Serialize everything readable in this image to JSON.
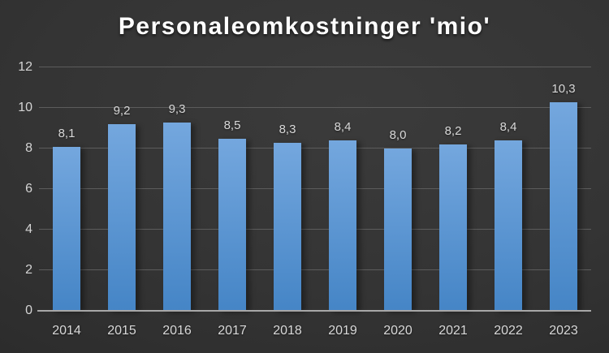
{
  "title": "Personaleomkostninger 'mio'",
  "chart_data": {
    "type": "bar",
    "title": "Personaleomkostninger 'mio'",
    "categories": [
      "2014",
      "2015",
      "2016",
      "2017",
      "2018",
      "2019",
      "2020",
      "2021",
      "2022",
      "2023"
    ],
    "values": [
      8.1,
      9.2,
      9.3,
      8.5,
      8.3,
      8.4,
      8.0,
      8.2,
      8.4,
      10.3
    ],
    "value_labels": [
      "8,1",
      "9,2",
      "9,3",
      "8,5",
      "8,3",
      "8,4",
      "8,0",
      "8,2",
      "8,4",
      "10,3"
    ],
    "y_ticks": [
      0,
      2,
      4,
      6,
      8,
      10,
      12
    ],
    "ylim": [
      0,
      12
    ],
    "xlabel": "",
    "ylabel": "",
    "grid": true,
    "legend": false,
    "decimal_separator": ",",
    "colors": {
      "bar_top": "#74a7de",
      "bar_bottom": "#4585c6",
      "gridline": "#5c5c5c",
      "axis_line": "#a8a8a8",
      "tick_text": "#d4d4d4",
      "data_label_text": "#d9d9d9",
      "title_text": "#ffffff",
      "background_center": "#3b3b3b",
      "background_edge": "#222222"
    }
  }
}
